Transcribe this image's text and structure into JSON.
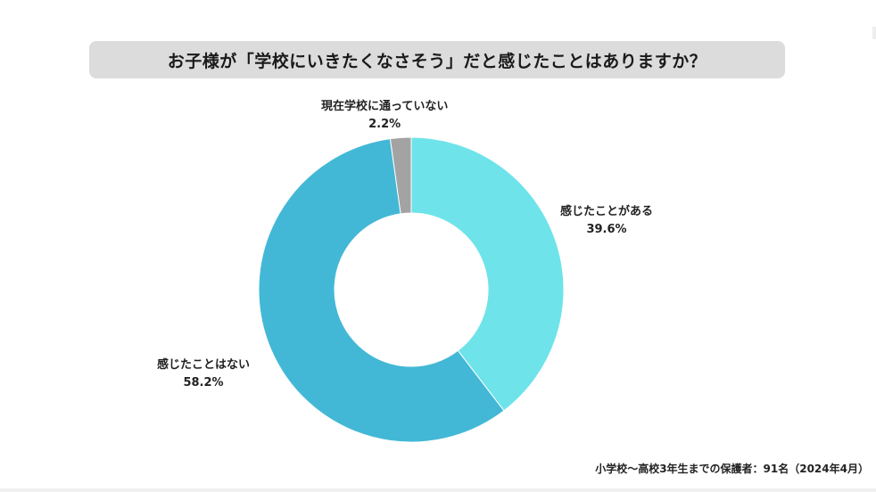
{
  "chart_data": {
    "type": "pie",
    "donut": true,
    "title": "お子様が「学校にいきたくなさそう」だと感じたことはありますか？",
    "slices": [
      {
        "label": "感じたことがある",
        "value": 39.6,
        "value_label": "39.6%",
        "color": "#6ee3ea"
      },
      {
        "label": "感じたことはない",
        "value": 58.2,
        "value_label": "58.2%",
        "color": "#43b8d6"
      },
      {
        "label": "現在学校に通っていない",
        "value": 2.2,
        "value_label": "2.2%",
        "color": "#a3a3a3"
      }
    ],
    "footnote": "小学校〜高校3年生までの保護者：91名（2024年4月）"
  }
}
